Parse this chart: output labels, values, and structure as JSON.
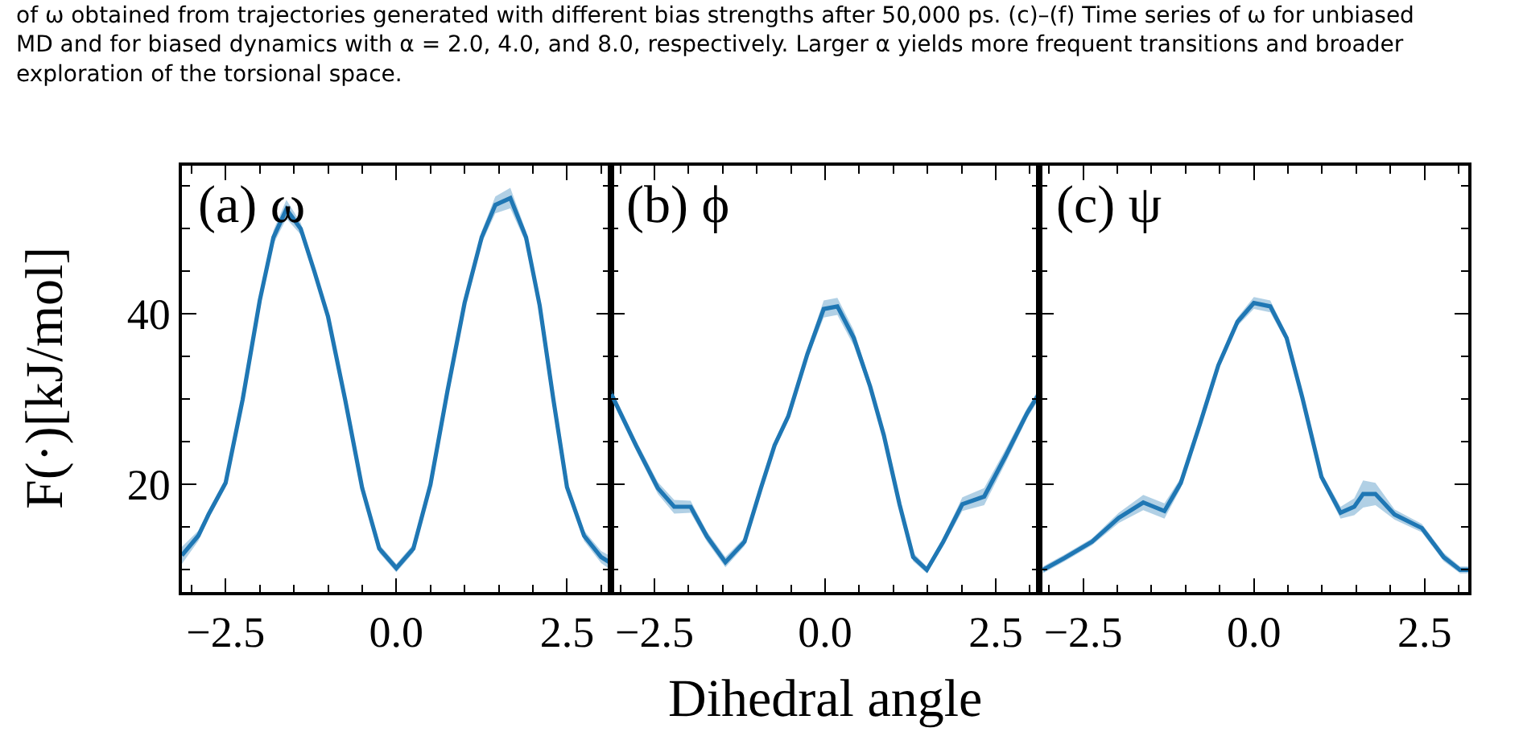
{
  "chart_data": [
    {
      "type": "line",
      "title": "(a) ω",
      "ylabel": "F(·)[kJ/mol]",
      "annotations": [
        "of ω obtained from trajectories generated with different bias strengths after 50,000 ps. (c)–(f) Time series of ω for unbiased\nMD and for biased dynamics with α = 2.0, 4.0, and 8.0, respectively. Larger α yields more frequent transitions and broader\nexploration of the torsional space."
      ],
      "xlim": [
        -3.14,
        3.14
      ],
      "ylim": [
        7.4,
        57.4
      ],
      "xticks": [
        {
          "value": -3.0,
          "label": null
        },
        {
          "value": -2.5,
          "label": "−2.5"
        },
        {
          "value": -2.0,
          "label": null
        },
        {
          "value": -1.5,
          "label": null
        },
        {
          "value": -1.0,
          "label": null
        },
        {
          "value": -0.5,
          "label": null
        },
        {
          "value": 0.0,
          "label": "0.0"
        },
        {
          "value": 0.5,
          "label": null
        },
        {
          "value": 1.0,
          "label": null
        },
        {
          "value": 1.5,
          "label": null
        },
        {
          "value": 2.0,
          "label": null
        },
        {
          "value": 2.5,
          "label": "2.5"
        },
        {
          "value": 3.0,
          "label": null
        }
      ],
      "yticks": [
        {
          "value": 10,
          "label": null
        },
        {
          "value": 15,
          "label": null
        },
        20,
        {
          "value": 25,
          "label": null
        },
        {
          "value": 30,
          "label": null
        },
        {
          "value": 35,
          "label": null
        },
        40,
        {
          "value": 45,
          "label": null
        },
        {
          "value": 50,
          "label": null
        },
        {
          "value": 55,
          "label": null
        }
      ],
      "series": [
        {
          "color": "#1f77b4",
          "x": [
            -3.14,
            -2.9,
            -2.75,
            -2.5,
            -2.25,
            -2.0,
            -1.8,
            -1.61,
            -1.4,
            -1.2,
            -1.0,
            -0.75,
            -0.5,
            -0.25,
            0.0,
            0.25,
            0.5,
            0.75,
            1.0,
            1.25,
            1.45,
            1.67,
            1.9,
            2.1,
            2.3,
            2.5,
            2.75,
            3.0,
            3.14
          ],
          "values": [
            11.7,
            14.0,
            16.5,
            20.2,
            30.0,
            41.6,
            49.0,
            52.3,
            50.0,
            45.0,
            39.7,
            30.0,
            19.6,
            12.5,
            10.2,
            12.5,
            20.0,
            31.0,
            41.3,
            49.0,
            52.8,
            53.6,
            49.0,
            41.0,
            30.0,
            19.7,
            14.0,
            11.5,
            10.8
          ],
          "lower": [
            10.7,
            13.4,
            16.0,
            19.7,
            29.5,
            41.0,
            48.2,
            51.2,
            49.3,
            44.5,
            39.2,
            29.5,
            19.1,
            12.0,
            9.7,
            12.0,
            19.5,
            30.5,
            40.8,
            48.3,
            51.8,
            52.4,
            48.3,
            40.5,
            29.5,
            19.2,
            13.4,
            10.8,
            10.0
          ],
          "upper": [
            12.7,
            14.6,
            17.0,
            20.7,
            30.5,
            42.2,
            49.8,
            53.4,
            50.7,
            45.5,
            40.2,
            30.5,
            20.1,
            13.0,
            10.7,
            13.0,
            20.5,
            31.5,
            41.8,
            49.7,
            53.8,
            54.8,
            49.7,
            41.5,
            30.5,
            20.2,
            14.6,
            12.2,
            11.6
          ]
        }
      ]
    },
    {
      "type": "line",
      "title": "(b) ϕ",
      "xlabel": "Dihedral angle",
      "xlim": [
        -3.14,
        3.14
      ],
      "ylim": [
        7.4,
        57.4
      ],
      "tick_labels": "x",
      "xticks": [
        {
          "value": -3.0,
          "label": null
        },
        {
          "value": -2.5,
          "label": "−2.5"
        },
        {
          "value": -2.0,
          "label": null
        },
        {
          "value": -1.5,
          "label": null
        },
        {
          "value": -1.0,
          "label": null
        },
        {
          "value": -0.5,
          "label": null
        },
        {
          "value": 0.0,
          "label": "0.0"
        },
        {
          "value": 0.5,
          "label": null
        },
        {
          "value": 1.0,
          "label": null
        },
        {
          "value": 1.5,
          "label": null
        },
        {
          "value": 2.0,
          "label": null
        },
        {
          "value": 2.5,
          "label": "2.5"
        },
        {
          "value": 3.0,
          "label": null
        }
      ],
      "yticks": [
        {
          "value": 10,
          "label": null
        },
        {
          "value": 15,
          "label": null
        },
        20,
        {
          "value": 25,
          "label": null
        },
        {
          "value": 30,
          "label": null
        },
        {
          "value": 35,
          "label": null
        },
        40,
        {
          "value": 45,
          "label": null
        },
        {
          "value": 50,
          "label": null
        },
        {
          "value": 55,
          "label": null
        }
      ],
      "series": [
        {
          "color": "#1f77b4",
          "x": [
            -3.13,
            -2.77,
            -2.45,
            -2.21,
            -1.97,
            -1.73,
            -1.46,
            -1.18,
            -0.94,
            -0.74,
            -0.54,
            -0.26,
            -0.02,
            0.18,
            0.42,
            0.66,
            0.86,
            1.09,
            1.29,
            1.49,
            1.73,
            2.01,
            2.33,
            2.64,
            2.96,
            3.13
          ],
          "values": [
            30.6,
            24.6,
            19.6,
            17.4,
            17.4,
            13.9,
            10.9,
            13.3,
            19.6,
            24.6,
            28.0,
            35.3,
            40.6,
            40.9,
            37.2,
            31.5,
            25.8,
            17.7,
            11.5,
            10.0,
            13.3,
            17.7,
            18.6,
            23.3,
            28.4,
            30.6
          ],
          "lower": [
            30.0,
            24.0,
            18.9,
            16.6,
            16.7,
            13.3,
            10.3,
            12.8,
            19.1,
            24.1,
            27.5,
            34.7,
            39.6,
            39.9,
            36.3,
            30.9,
            25.2,
            17.2,
            11.0,
            9.6,
            12.8,
            16.9,
            17.6,
            22.5,
            27.8,
            30.0
          ],
          "upper": [
            31.2,
            25.2,
            20.3,
            18.2,
            18.1,
            14.5,
            11.5,
            13.8,
            20.1,
            25.1,
            28.5,
            35.9,
            41.6,
            41.9,
            38.1,
            32.1,
            26.4,
            18.2,
            12.0,
            10.4,
            13.8,
            18.5,
            19.6,
            24.1,
            29.0,
            31.2
          ]
        }
      ]
    },
    {
      "type": "line",
      "title": "(c) ψ",
      "xlim": [
        -3.14,
        3.14
      ],
      "ylim": [
        7.4,
        57.4
      ],
      "tick_labels": "x",
      "xticks": [
        {
          "value": -3.0,
          "label": null
        },
        {
          "value": -2.5,
          "label": "−2.5"
        },
        {
          "value": -2.0,
          "label": null
        },
        {
          "value": -1.5,
          "label": null
        },
        {
          "value": -1.0,
          "label": null
        },
        {
          "value": -0.5,
          "label": null
        },
        {
          "value": 0.0,
          "label": "0.0"
        },
        {
          "value": 0.5,
          "label": null
        },
        {
          "value": 1.0,
          "label": null
        },
        {
          "value": 1.5,
          "label": null
        },
        {
          "value": 2.0,
          "label": null
        },
        {
          "value": 2.5,
          "label": "2.5"
        },
        {
          "value": 3.0,
          "label": null
        }
      ],
      "yticks": [
        {
          "value": 10,
          "label": null
        },
        {
          "value": 15,
          "label": null
        },
        20,
        {
          "value": 25,
          "label": null
        },
        {
          "value": 30,
          "label": null
        },
        {
          "value": 35,
          "label": null
        },
        40,
        {
          "value": 45,
          "label": null
        },
        {
          "value": 50,
          "label": null
        },
        {
          "value": 55,
          "label": null
        }
      ],
      "series": [
        {
          "color": "#1f77b4",
          "x": [
            -3.09,
            -2.77,
            -2.37,
            -1.98,
            -1.62,
            -1.31,
            -1.07,
            -0.79,
            -0.52,
            -0.24,
            0.0,
            0.24,
            0.48,
            0.71,
            0.99,
            1.27,
            1.47,
            1.6,
            1.78,
            2.06,
            2.46,
            2.78,
            3.02,
            3.14
          ],
          "values": [
            10.0,
            11.4,
            13.3,
            16.1,
            17.9,
            16.9,
            20.2,
            27.1,
            34.0,
            39.1,
            41.3,
            40.9,
            37.2,
            30.2,
            20.9,
            16.7,
            17.4,
            18.9,
            18.9,
            16.5,
            14.9,
            11.5,
            10.0,
            10.0
          ],
          "lower": [
            9.6,
            11.0,
            12.9,
            15.5,
            17.0,
            16.0,
            19.6,
            26.6,
            33.5,
            38.6,
            40.6,
            40.2,
            36.7,
            29.7,
            20.4,
            16.0,
            16.4,
            17.3,
            17.6,
            15.9,
            14.4,
            11.0,
            9.6,
            9.6
          ],
          "upper": [
            10.4,
            11.8,
            13.7,
            16.7,
            18.8,
            17.8,
            20.8,
            27.6,
            34.5,
            39.6,
            42.0,
            41.6,
            37.7,
            30.7,
            21.4,
            17.4,
            18.4,
            20.5,
            20.2,
            17.1,
            15.4,
            12.0,
            10.4,
            10.4
          ]
        }
      ]
    }
  ]
}
